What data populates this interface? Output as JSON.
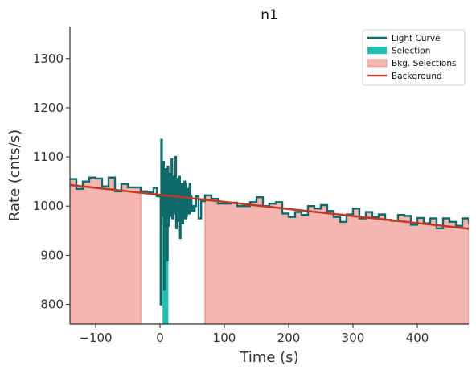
{
  "chart_data": {
    "type": "line",
    "title": "n1",
    "xlabel": "Time (s)",
    "ylabel": "Rate (cnts/s)",
    "xlim": [
      -140,
      480
    ],
    "ylim": [
      760,
      1365
    ],
    "xticks": [
      -100,
      0,
      100,
      200,
      300,
      400
    ],
    "yticks": [
      800,
      900,
      1000,
      1100,
      1200,
      1300
    ],
    "xtick_labels": [
      "−100",
      "0",
      "100",
      "200",
      "300",
      "400"
    ],
    "ytick_labels": [
      "800",
      "900",
      "1000",
      "1100",
      "1200",
      "1300"
    ],
    "legend_placement": "top-right",
    "legend": [
      {
        "key": "light_curve",
        "label": "Light Curve",
        "kind": "line"
      },
      {
        "key": "selection",
        "label": "Selection",
        "kind": "patch"
      },
      {
        "key": "bkg",
        "label": "Bkg. Selections",
        "kind": "patch"
      },
      {
        "key": "background",
        "label": "Background",
        "kind": "line"
      }
    ],
    "colors": {
      "light_curve": "#0e6b6a",
      "selection": "#1fbfb3",
      "bkg_fill": "#f4b6b1",
      "bkg_edge": "#ee8a83",
      "background": "#c0392b",
      "axis": "#333333"
    },
    "background_fit": {
      "x": [
        -140,
        480
      ],
      "y": [
        1043,
        954
      ]
    },
    "selection_interval": [
      4,
      13
    ],
    "bkg_intervals": [
      [
        -140,
        -30
      ],
      [
        70,
        480
      ]
    ],
    "light_curve": {
      "x": [
        -140,
        -130,
        -120,
        -110,
        -100,
        -90,
        -80,
        -70,
        -60,
        -50,
        -40,
        -30,
        -20,
        -10,
        -5,
        0,
        1,
        2,
        3,
        4,
        5,
        6,
        7,
        8,
        9,
        10,
        11,
        12,
        13,
        14,
        15,
        16,
        17,
        18,
        19,
        20,
        21,
        22,
        23,
        24,
        25,
        26,
        27,
        28,
        29,
        30,
        31,
        32,
        33,
        34,
        35,
        36,
        37,
        38,
        39,
        40,
        41,
        42,
        43,
        44,
        45,
        46,
        47,
        48,
        49,
        50,
        52,
        54,
        56,
        60,
        64,
        70,
        80,
        90,
        100,
        110,
        120,
        130,
        140,
        150,
        160,
        170,
        180,
        190,
        200,
        210,
        220,
        230,
        240,
        250,
        260,
        270,
        280,
        290,
        300,
        310,
        320,
        330,
        340,
        350,
        360,
        370,
        380,
        390,
        400,
        410,
        420,
        430,
        440,
        450,
        460,
        470,
        480
      ],
      "y": [
        1055,
        1035,
        1050,
        1058,
        1056,
        1040,
        1058,
        1030,
        1045,
        1038,
        1038,
        1030,
        1028,
        1037,
        1020,
        1020,
        800,
        1135,
        1000,
        980,
        1090,
        830,
        1040,
        960,
        1075,
        1000,
        890,
        1080,
        960,
        1065,
        980,
        1040,
        1000,
        1095,
        975,
        1030,
        985,
        1060,
        985,
        1100,
        955,
        1055,
        970,
        1040,
        995,
        1060,
        935,
        1030,
        985,
        1045,
        965,
        1040,
        985,
        1050,
        975,
        1045,
        980,
        1035,
        990,
        1030,
        985,
        1045,
        1000,
        1020,
        990,
        1000,
        990,
        1000,
        1020,
        975,
        1010,
        1022,
        1015,
        1005,
        1005,
        1007,
        1000,
        1000,
        1008,
        1018,
        1000,
        1005,
        1008,
        985,
        978,
        988,
        982,
        1000,
        995,
        1002,
        990,
        978,
        968,
        983,
        995,
        975,
        988,
        978,
        983,
        972,
        970,
        982,
        980,
        962,
        976,
        965,
        975,
        955,
        975,
        968,
        960,
        975,
        965
      ]
    }
  }
}
